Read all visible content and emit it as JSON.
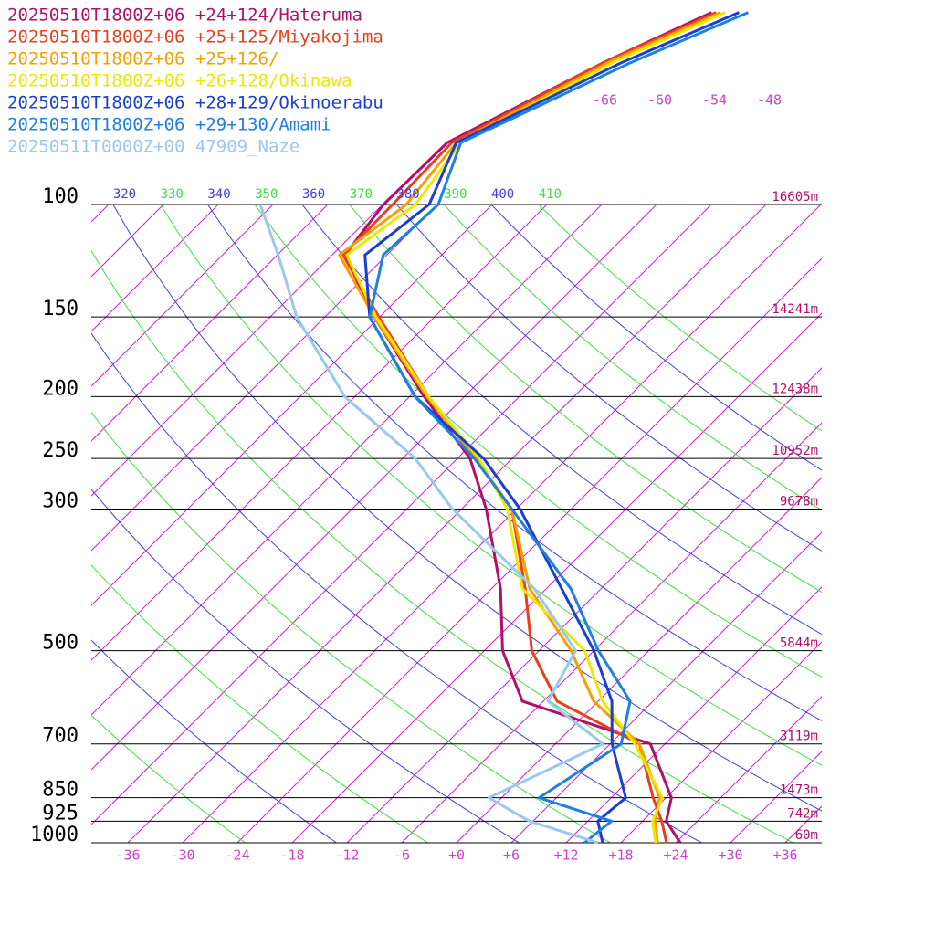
{
  "chart_data": {
    "type": "skewt",
    "levels": [
      1000,
      925,
      850,
      700,
      600,
      500,
      400,
      300,
      250,
      200,
      150,
      120,
      100,
      80,
      60,
      50
    ],
    "series": [
      {
        "name": "20250510T1800Z+06 +24+124/Hateruma",
        "color": "#b0106a",
        "values": [
          24.5,
          20.6,
          18.6,
          10.4,
          -8.3,
          -16,
          -23,
          -33.3,
          -40.6,
          -52.4,
          -66.6,
          -76.6,
          -77.9,
          -77.7,
          -69.4,
          -63
        ]
      },
      {
        "name": "20250510T1800Z+06 +25+125/Miyakojima",
        "color": "#e8401c",
        "values": [
          23,
          20.1,
          16.6,
          9.2,
          -4.5,
          -12.8,
          -20.3,
          -30.5,
          -40.1,
          -51.9,
          -66.1,
          -76.8,
          -76.9,
          -77.2,
          -69.4,
          -62.5
        ]
      },
      {
        "name": "20250510T1800Z+06 +25+126/",
        "color": "#f5a000",
        "values": [
          22,
          19.4,
          17.3,
          9.2,
          -0.5,
          -8.5,
          -19.8,
          -30.5,
          -39.9,
          -52.1,
          -66.6,
          -77.2,
          -75.4,
          -76.7,
          -68.9,
          -62
        ]
      },
      {
        "name": "20250510T1800Z+06 +26+128/Okinawa",
        "color": "#ece800",
        "values": [
          21.8,
          19.1,
          17.6,
          8.7,
          0.5,
          -7,
          -20.6,
          -31,
          -39.6,
          -51.9,
          -66.4,
          -76.4,
          -74.4,
          -76.2,
          -68.4,
          -61.5
        ]
      },
      {
        "name": "20250510T1800Z+06 +28+129/Okinoerabu",
        "color": "#1a3fd0",
        "values": [
          16,
          13.1,
          13.6,
          6.2,
          1.5,
          -6,
          -16.3,
          -29.6,
          -39.1,
          -53.4,
          -67.1,
          -74.4,
          -72.9,
          -76.7,
          -67.4,
          -60
        ]
      },
      {
        "name": "20250510T1800Z+06 +29+130/Amami",
        "color": "#2080e0",
        "values": [
          14,
          14.6,
          4.1,
          7.2,
          3.5,
          -5.5,
          -15.3,
          -30.5,
          -40.1,
          -53.4,
          -67.1,
          -72.4,
          -71.9,
          -76.2,
          -66.4,
          -59
        ]
      },
      {
        "name": "20250511T0000Z+00 47909_Naze",
        "color": "#99c8f0",
        "values": [
          15.5,
          5.6,
          -1.4,
          5.2,
          -5.5,
          -8,
          -19.3,
          -37,
          -46.6,
          -61.1,
          -75.1,
          -83.9,
          -91.4,
          null,
          null,
          null
        ]
      }
    ],
    "ylim": [
      1000,
      100
    ],
    "log_y": true,
    "yticks": [
      100,
      150,
      200,
      250,
      300,
      500,
      700,
      850,
      925,
      1000
    ],
    "heights": [
      "16605m",
      "14241m",
      "12438m",
      "10952m",
      "9678m",
      "5844m",
      "3119m",
      "1473m",
      "742m",
      "60m"
    ],
    "xlim": [
      -40,
      40
    ],
    "xticks": [
      -36,
      -30,
      -24,
      -18,
      -12,
      -6,
      {
        "value": 0,
        "label": "+0"
      },
      {
        "value": 6,
        "label": "+6"
      },
      {
        "value": 12,
        "label": "+12"
      },
      {
        "value": 18,
        "label": "+18"
      },
      {
        "value": 24,
        "label": "+24"
      },
      {
        "value": 30,
        "label": "+30"
      },
      {
        "value": 36,
        "label": "+36"
      }
    ],
    "isotherms": [
      -108,
      -102,
      -96,
      -90,
      -84,
      -78,
      -72,
      -66,
      -60,
      -54,
      -48,
      -42,
      -36,
      -30,
      -24,
      -18,
      -12,
      -6,
      0,
      6,
      12,
      18,
      24,
      30,
      36
    ],
    "isotherm_labels": [
      -66,
      -60,
      -54,
      -48
    ],
    "theta_lines": [
      250,
      260,
      270,
      280,
      290,
      300,
      310,
      320,
      330,
      340,
      350,
      360,
      370,
      380,
      390,
      400,
      410
    ]
  }
}
